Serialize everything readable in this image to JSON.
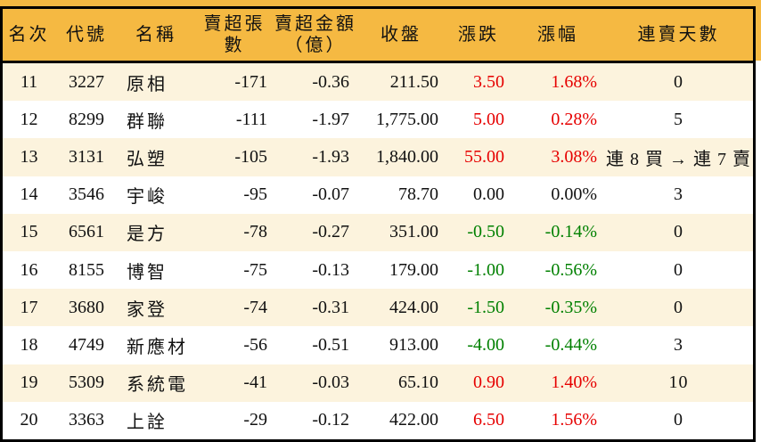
{
  "table": {
    "headers": [
      {
        "key": "rank",
        "label": "名次"
      },
      {
        "key": "code",
        "label": "代號"
      },
      {
        "key": "name",
        "label": "名稱"
      },
      {
        "key": "volume",
        "label": "賣超張數"
      },
      {
        "key": "amount",
        "label": "賣超金額",
        "label2": "（億）"
      },
      {
        "key": "close",
        "label": "收盤"
      },
      {
        "key": "change",
        "label": "漲跌"
      },
      {
        "key": "pct",
        "label": "漲幅"
      },
      {
        "key": "days",
        "label": "連賣天數"
      }
    ],
    "rows": [
      {
        "rank": "11",
        "code": "3227",
        "name": "原相",
        "volume": "-171",
        "amount": "-0.36",
        "close": "211.50",
        "change": "3.50",
        "pct": "1.68%",
        "days": "0",
        "trend": "up"
      },
      {
        "rank": "12",
        "code": "8299",
        "name": "群聯",
        "volume": "-111",
        "amount": "-1.97",
        "close": "1,775.00",
        "change": "5.00",
        "pct": "0.28%",
        "days": "5",
        "trend": "up"
      },
      {
        "rank": "13",
        "code": "3131",
        "name": "弘塑",
        "volume": "-105",
        "amount": "-1.93",
        "close": "1,840.00",
        "change": "55.00",
        "pct": "3.08%",
        "days": "連 8 買 → 連 7 賣",
        "trend": "up"
      },
      {
        "rank": "14",
        "code": "3546",
        "name": "宇峻",
        "volume": "-95",
        "amount": "-0.07",
        "close": "78.70",
        "change": "0.00",
        "pct": "0.00%",
        "days": "3",
        "trend": "flat"
      },
      {
        "rank": "15",
        "code": "6561",
        "name": "是方",
        "volume": "-78",
        "amount": "-0.27",
        "close": "351.00",
        "change": "-0.50",
        "pct": "-0.14%",
        "days": "0",
        "trend": "down"
      },
      {
        "rank": "16",
        "code": "8155",
        "name": "博智",
        "volume": "-75",
        "amount": "-0.13",
        "close": "179.00",
        "change": "-1.00",
        "pct": "-0.56%",
        "days": "0",
        "trend": "down"
      },
      {
        "rank": "17",
        "code": "3680",
        "name": "家登",
        "volume": "-74",
        "amount": "-0.31",
        "close": "424.00",
        "change": "-1.50",
        "pct": "-0.35%",
        "days": "0",
        "trend": "down"
      },
      {
        "rank": "18",
        "code": "4749",
        "name": "新應材",
        "volume": "-56",
        "amount": "-0.51",
        "close": "913.00",
        "change": "-4.00",
        "pct": "-0.44%",
        "days": "3",
        "trend": "down"
      },
      {
        "rank": "19",
        "code": "5309",
        "name": "系統電",
        "volume": "-41",
        "amount": "-0.03",
        "close": "65.10",
        "change": "0.90",
        "pct": "1.40%",
        "days": "10",
        "trend": "up"
      },
      {
        "rank": "20",
        "code": "3363",
        "name": "上詮",
        "volume": "-29",
        "amount": "-0.12",
        "close": "422.00",
        "change": "6.50",
        "pct": "1.56%",
        "days": "0",
        "trend": "up"
      }
    ]
  },
  "colors": {
    "header_bg": "#F5B942",
    "row_alt_bg": "#FCF3DD",
    "row_bg": "#FFFFFF",
    "border": "#000000",
    "up": "#E60000",
    "down": "#008000",
    "flat": "#111111"
  }
}
